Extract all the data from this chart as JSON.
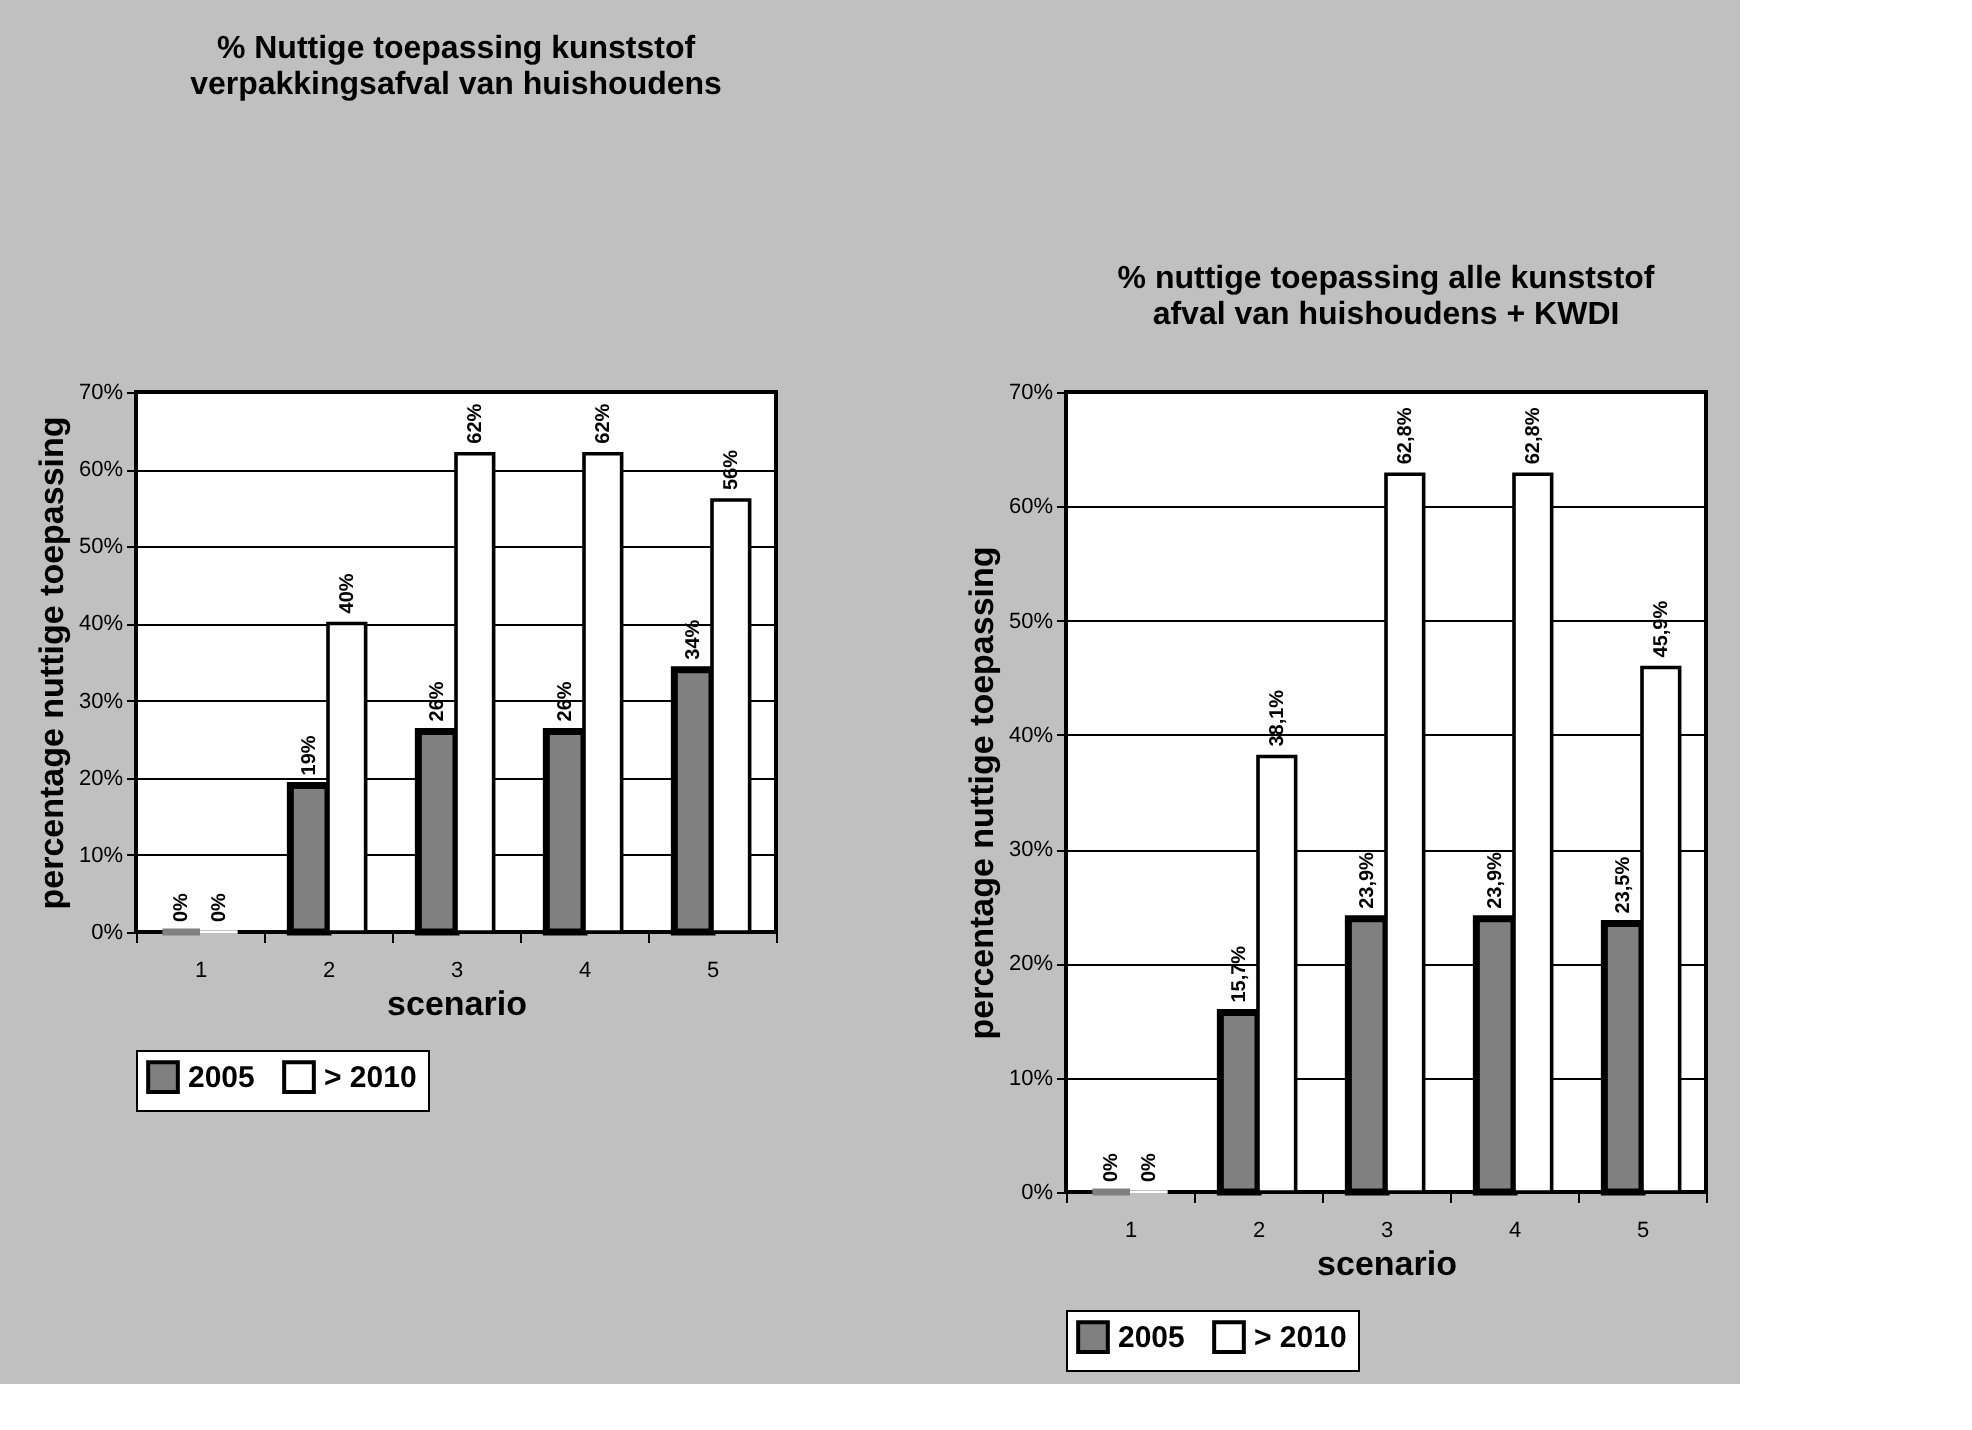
{
  "chart_data": [
    {
      "type": "bar",
      "title": "% Nuttige toepassing kunststof\nverpakkingsafval van huishoudens",
      "xlabel": "scenario",
      "ylabel": "percentage nuttige toepassing",
      "categories": [
        "1",
        "2",
        "3",
        "4",
        "5"
      ],
      "series": [
        {
          "name": "2005",
          "color": "#808080",
          "values": [
            0,
            19,
            26,
            26,
            34
          ],
          "value_labels": [
            "0%",
            "19%",
            "26%",
            "26%",
            "34%"
          ]
        },
        {
          "name": "> 2010",
          "color": "#ffffff",
          "values": [
            0,
            40,
            62,
            62,
            56
          ],
          "value_labels": [
            "0%",
            "40%",
            "62%",
            "62%",
            "56%"
          ]
        }
      ],
      "ylim": [
        0,
        70
      ],
      "yticks": [
        {
          "value": 0,
          "label": "0%"
        },
        {
          "value": 10,
          "label": "10%"
        },
        {
          "value": 20,
          "label": "20%"
        },
        {
          "value": 30,
          "label": "30%"
        },
        {
          "value": 40,
          "label": "40%"
        },
        {
          "value": 50,
          "label": "50%"
        },
        {
          "value": 60,
          "label": "60%"
        },
        {
          "value": 70,
          "label": "70%"
        }
      ],
      "grid": "y",
      "legend": "bottom"
    },
    {
      "type": "bar",
      "title": "% nuttige toepassing alle kunststof\nafval van huishoudens + KWDI",
      "xlabel": "scenario",
      "ylabel": "percentage nuttige toepassing",
      "categories": [
        "1",
        "2",
        "3",
        "4",
        "5"
      ],
      "series": [
        {
          "name": "2005",
          "color": "#808080",
          "values": [
            0,
            15.7,
            23.9,
            23.9,
            23.5
          ],
          "value_labels": [
            "0%",
            "15,7%",
            "23,9%",
            "23,9%",
            "23,5%"
          ]
        },
        {
          "name": "> 2010",
          "color": "#ffffff",
          "values": [
            0,
            38.1,
            62.8,
            62.8,
            45.9
          ],
          "value_labels": [
            "0%",
            "38,1%",
            "62,8%",
            "62,8%",
            "45,9%"
          ]
        }
      ],
      "ylim": [
        0,
        70
      ],
      "yticks": [
        {
          "value": 0,
          "label": "0%"
        },
        {
          "value": 10,
          "label": "10%"
        },
        {
          "value": 20,
          "label": "20%"
        },
        {
          "value": 30,
          "label": "30%"
        },
        {
          "value": 40,
          "label": "40%"
        },
        {
          "value": 50,
          "label": "50%"
        },
        {
          "value": 60,
          "label": "60%"
        },
        {
          "value": 70,
          "label": "70%"
        }
      ],
      "grid": "y",
      "legend": "bottom"
    }
  ]
}
